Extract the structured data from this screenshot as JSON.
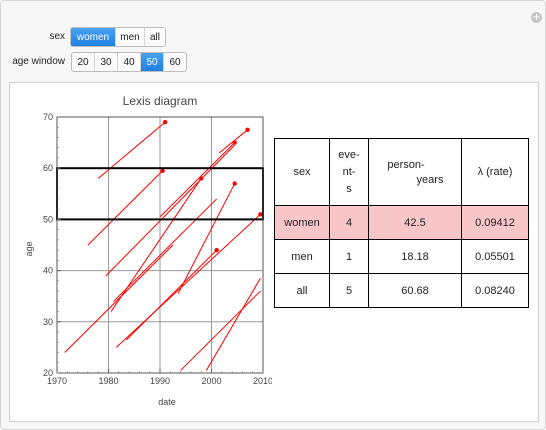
{
  "controls": {
    "sex": {
      "label": "sex",
      "options": [
        "women",
        "men",
        "all"
      ],
      "selected": "women"
    },
    "age_window": {
      "label": "age window",
      "options": [
        "20",
        "30",
        "40",
        "50",
        "60"
      ],
      "selected": "50"
    }
  },
  "chart_data": {
    "type": "line",
    "title": "Lexis diagram",
    "xlabel": "date",
    "ylabel": "age",
    "xlim": [
      1970,
      2010
    ],
    "ylim": [
      20,
      70
    ],
    "x_ticks": [
      1970,
      1980,
      1990,
      2000,
      2010
    ],
    "y_ticks": [
      20,
      30,
      40,
      50,
      60,
      70
    ],
    "grid": true,
    "age_window_box": {
      "x": [
        1970,
        2010
      ],
      "y": [
        50,
        60
      ]
    },
    "lifelines": [
      {
        "x0": 1971.5,
        "y0": 24,
        "x1": 1992.5,
        "y1": 45,
        "event": false
      },
      {
        "x0": 1976,
        "y0": 45,
        "x1": 1990.5,
        "y1": 59.5,
        "event": true
      },
      {
        "x0": 1978,
        "y0": 58,
        "x1": 1991,
        "y1": 69,
        "event": true
      },
      {
        "x0": 1979.5,
        "y0": 39,
        "x1": 2004.5,
        "y1": 64.5,
        "event": false
      },
      {
        "x0": 1980.5,
        "y0": 32,
        "x1": 1998,
        "y1": 58,
        "event": true
      },
      {
        "x0": 1981,
        "y0": 34,
        "x1": 2001,
        "y1": 54,
        "event": false
      },
      {
        "x0": 1981.5,
        "y0": 25,
        "x1": 2009.5,
        "y1": 51,
        "event": true
      },
      {
        "x0": 1983.5,
        "y0": 26.5,
        "x1": 2001,
        "y1": 44,
        "event": true
      },
      {
        "x0": 1990,
        "y0": 50.5,
        "x1": 2004.5,
        "y1": 65,
        "event": true
      },
      {
        "x0": 1993.5,
        "y0": 35.5,
        "x1": 2004.5,
        "y1": 57,
        "event": true
      },
      {
        "x0": 1994,
        "y0": 20.5,
        "x1": 2009.5,
        "y1": 36,
        "event": false
      },
      {
        "x0": 2001.5,
        "y0": 63,
        "x1": 2007,
        "y1": 67.5,
        "event": true
      },
      {
        "x0": 1999,
        "y0": 20.5,
        "x1": 2009.5,
        "y1": 38.5,
        "event": false
      }
    ]
  },
  "table": {
    "headers": {
      "sex": "sex",
      "events": [
        "eve-",
        "nt-",
        "s"
      ],
      "person_years": [
        "person-",
        "years"
      ],
      "rate": "λ (rate)"
    },
    "rows": [
      {
        "sex": "women",
        "events": "4",
        "person_years": "42.5",
        "rate": "0.09412",
        "highlighted": true
      },
      {
        "sex": "men",
        "events": "1",
        "person_years": "18.18",
        "rate": "0.05501",
        "highlighted": false
      },
      {
        "sex": "all",
        "events": "5",
        "person_years": "60.68",
        "rate": "0.08240",
        "highlighted": false
      }
    ]
  },
  "colors": {
    "selected": "#2a8ae8",
    "lifeline": "#ff0000",
    "highlight": "#f8c6c6"
  }
}
